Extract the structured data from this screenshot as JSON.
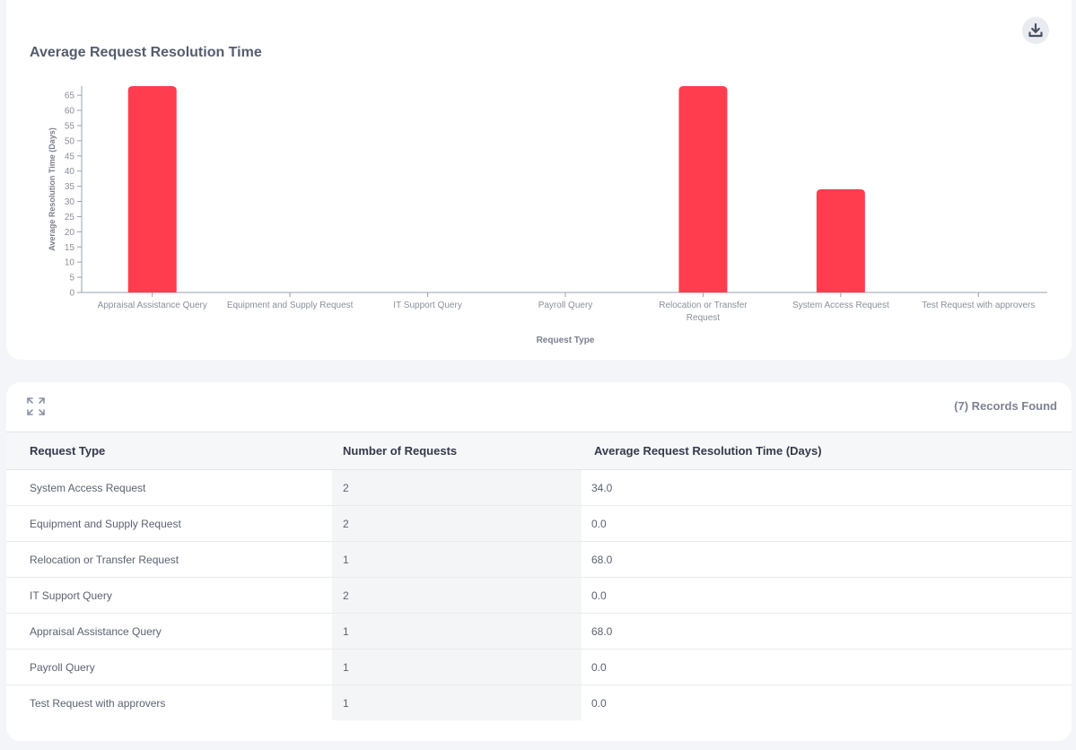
{
  "chart_card": {
    "title": "Average Request Resolution Time",
    "download_icon": "download-icon"
  },
  "chart_data": {
    "type": "bar",
    "title": "Average Request Resolution Time",
    "xlabel": "Request Type",
    "ylabel": "Average Resolution Time (Days)",
    "categories": [
      "Appraisal Assistance Query",
      "Equipment and Supply Request",
      "IT Support Query",
      "Payroll Query",
      "Relocation or Transfer Request",
      "System Access Request",
      "Test Request with approvers"
    ],
    "values": [
      68,
      0,
      0,
      0,
      68,
      34,
      0
    ],
    "ylim": [
      0,
      68
    ],
    "yticks": [
      0,
      5,
      10,
      15,
      20,
      25,
      30,
      35,
      40,
      45,
      50,
      55,
      60,
      65
    ],
    "bar_color": "#ff3d4e",
    "grid": false,
    "legend": "none"
  },
  "table_card": {
    "expand_icon": "expand-icon",
    "records_text": "(7) Records Found",
    "columns": [
      "Request Type",
      "Number of Requests",
      "Average Request Resolution Time (Days)"
    ],
    "rows": [
      {
        "type": "System Access Request",
        "count": "2",
        "avg": "34.0"
      },
      {
        "type": "Equipment and Supply Request",
        "count": "2",
        "avg": "0.0"
      },
      {
        "type": "Relocation or Transfer Request",
        "count": "1",
        "avg": "68.0"
      },
      {
        "type": "IT Support Query",
        "count": "2",
        "avg": "0.0"
      },
      {
        "type": "Appraisal Assistance Query",
        "count": "1",
        "avg": "68.0"
      },
      {
        "type": "Payroll Query",
        "count": "1",
        "avg": "0.0"
      },
      {
        "type": "Test Request with approvers",
        "count": "1",
        "avg": "0.0"
      }
    ]
  }
}
